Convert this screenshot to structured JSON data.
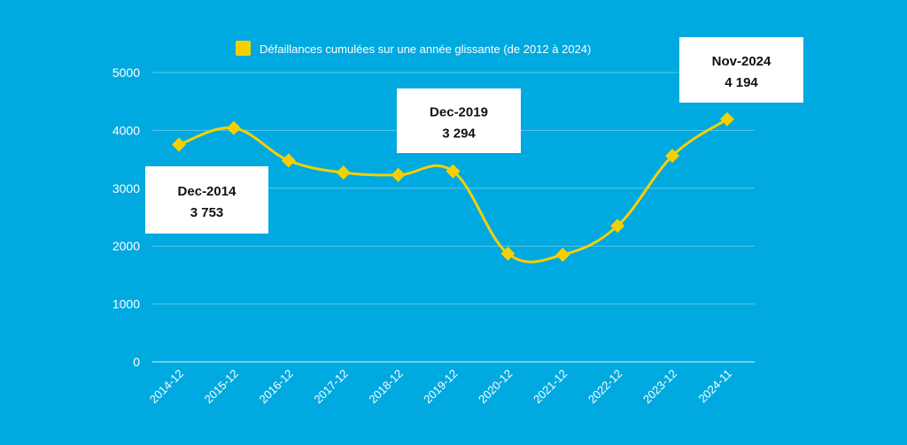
{
  "colors": {
    "background": "#00a9e0",
    "line": "#f5d000",
    "marker": "#f5d000",
    "gridline": "#5cc8ec",
    "text": "#ffffff",
    "callout_bg": "#ffffff",
    "callout_text": "#111111"
  },
  "chart_data": {
    "type": "line",
    "categories": [
      "2014-12",
      "2015-12",
      "2016-12",
      "2017-12",
      "2018-12",
      "2019-12",
      "2020-12",
      "2021-12",
      "2022-12",
      "2023-12",
      "2024-11"
    ],
    "series": [
      {
        "name": "Défaillances cumulées sur une année glissante (de 2012 à 2024)",
        "values": [
          3753,
          4040,
          3480,
          3270,
          3230,
          3294,
          1870,
          1850,
          2350,
          3560,
          4194
        ],
        "marker": "diamond"
      }
    ],
    "ylim": [
      0,
      5000
    ],
    "yticks": [
      0,
      1000,
      2000,
      3000,
      4000,
      5000
    ],
    "grid": true,
    "legend_position": "top-center",
    "annotations": [
      {
        "category": "2014-12",
        "line1": "Dec-2014",
        "line2": "3 753"
      },
      {
        "category": "2019-12",
        "line1": "Dec-2019",
        "line2": "3 294"
      },
      {
        "category": "2024-11",
        "line1": "Nov-2024",
        "line2": "4 194"
      }
    ]
  }
}
